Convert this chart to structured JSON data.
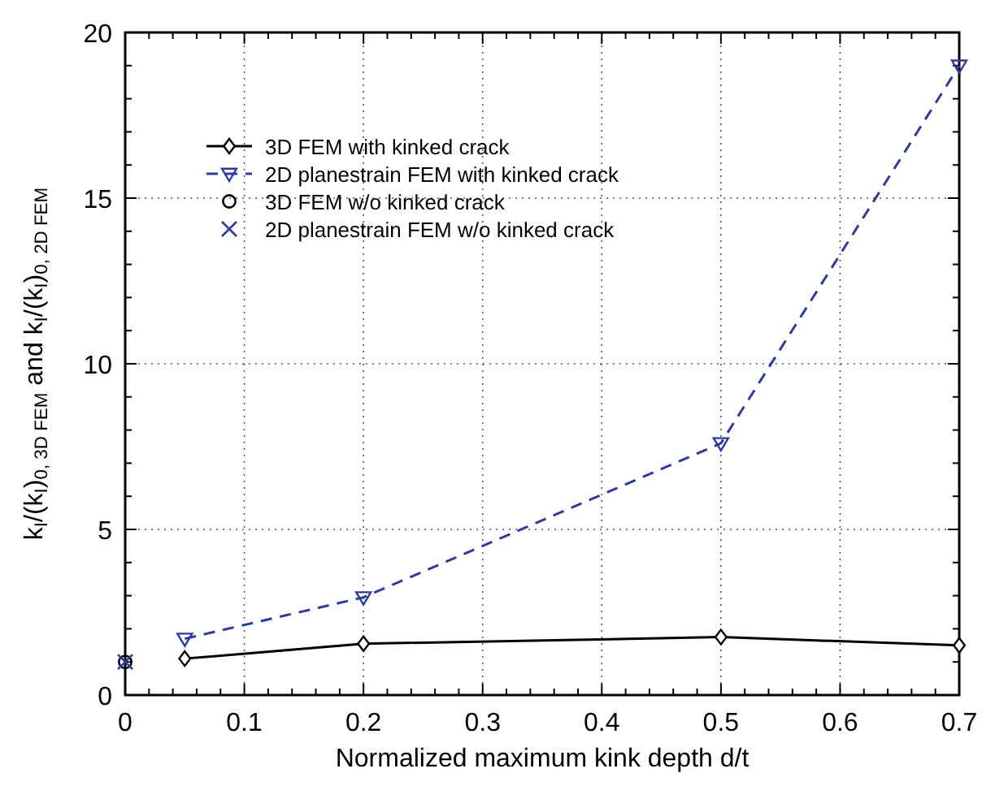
{
  "chart_data": {
    "type": "line",
    "xlabel": "Normalized maximum kink depth d/t",
    "ylabel": "k$_{I}$/(k$_{I}$)$_{0, 3D FEM}$  and k$_{I}$/(k$_{I}$)$_{0, 2D FEM}$",
    "xlim": [
      0,
      0.7
    ],
    "ylim": [
      0,
      20
    ],
    "xticks": [
      0,
      0.1,
      0.2,
      0.3,
      0.4,
      0.5,
      0.6,
      0.7
    ],
    "yticks": [
      0,
      5,
      10,
      15,
      20
    ],
    "grid": true,
    "legend": "top left",
    "series": [
      {
        "name": "3D FEM with kinked crack",
        "color": "#000000",
        "marker": "diamond",
        "line_style": "solid",
        "x": [
          0.05,
          0.2,
          0.5,
          0.7
        ],
        "values": [
          1.1,
          1.55,
          1.75,
          1.5
        ]
      },
      {
        "name": "2D planestrain FEM with kinked crack",
        "color": "#2e3a9e",
        "marker": "triangle",
        "line_style": "dashed",
        "x": [
          0.05,
          0.2,
          0.5,
          0.7
        ],
        "values": [
          1.7,
          2.95,
          7.6,
          19
        ]
      },
      {
        "name": "3D FEM w/o kinked crack",
        "type": "scatter",
        "color": "#000000",
        "marker": "circle",
        "x": [
          0
        ],
        "values": [
          1
        ]
      },
      {
        "name": "2D planestrain FEM w/o kinked crack",
        "type": "scatter",
        "color": "#2e3a9e",
        "marker": "cross",
        "x": [
          0
        ],
        "values": [
          1
        ]
      }
    ]
  }
}
